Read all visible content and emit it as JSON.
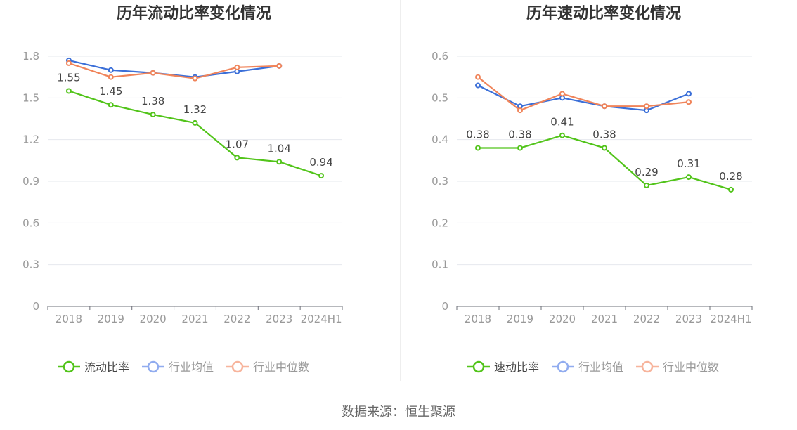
{
  "source_label": "数据来源：恒生聚源",
  "colors": {
    "main": "#52c41a",
    "avg": "#3b6fd8",
    "median": "#f0845a",
    "legend_avg": "#91acef",
    "legend_median": "#f7b49c",
    "axis_text": "#999999",
    "grid": "#e6e8ee",
    "title": "#333333",
    "label": "#444444"
  },
  "chart_data": [
    {
      "type": "line",
      "title": "历年流动比率变化情况",
      "categories": [
        "2018",
        "2019",
        "2020",
        "2021",
        "2022",
        "2023",
        "2024H1"
      ],
      "ylim": [
        0,
        1.8
      ],
      "yticks": [
        "0",
        "0.3",
        "0.6",
        "0.9",
        "1.2",
        "1.5",
        "1.8"
      ],
      "grid": true,
      "legend_position": "bottom",
      "series": [
        {
          "name": "流动比率",
          "values": [
            1.55,
            1.45,
            1.38,
            1.32,
            1.07,
            1.04,
            0.94
          ],
          "labels": [
            "1.55",
            "1.45",
            "1.38",
            "1.32",
            "1.07",
            "1.04",
            "0.94"
          ]
        },
        {
          "name": "行业均值",
          "values": [
            1.77,
            1.7,
            1.68,
            1.65,
            1.69,
            1.73,
            null
          ]
        },
        {
          "name": "行业中位数",
          "values": [
            1.75,
            1.65,
            1.68,
            1.64,
            1.72,
            1.73,
            null
          ]
        }
      ]
    },
    {
      "type": "line",
      "title": "历年速动比率变化情况",
      "categories": [
        "2018",
        "2019",
        "2020",
        "2021",
        "2022",
        "2023",
        "2024H1"
      ],
      "ylim": [
        0,
        0.6
      ],
      "yticks": [
        "0",
        "0.1",
        "0.2",
        "0.3",
        "0.4",
        "0.5",
        "0.6"
      ],
      "grid": true,
      "legend_position": "bottom",
      "series": [
        {
          "name": "速动比率",
          "values": [
            0.38,
            0.38,
            0.41,
            0.38,
            0.29,
            0.31,
            0.28
          ],
          "labels": [
            "0.38",
            "0.38",
            "0.41",
            "0.38",
            "0.29",
            "0.31",
            "0.28"
          ]
        },
        {
          "name": "行业均值",
          "values": [
            0.53,
            0.48,
            0.5,
            0.48,
            0.47,
            0.51,
            null
          ]
        },
        {
          "name": "行业中位数",
          "values": [
            0.55,
            0.47,
            0.51,
            0.48,
            0.48,
            0.49,
            null
          ]
        }
      ]
    }
  ]
}
